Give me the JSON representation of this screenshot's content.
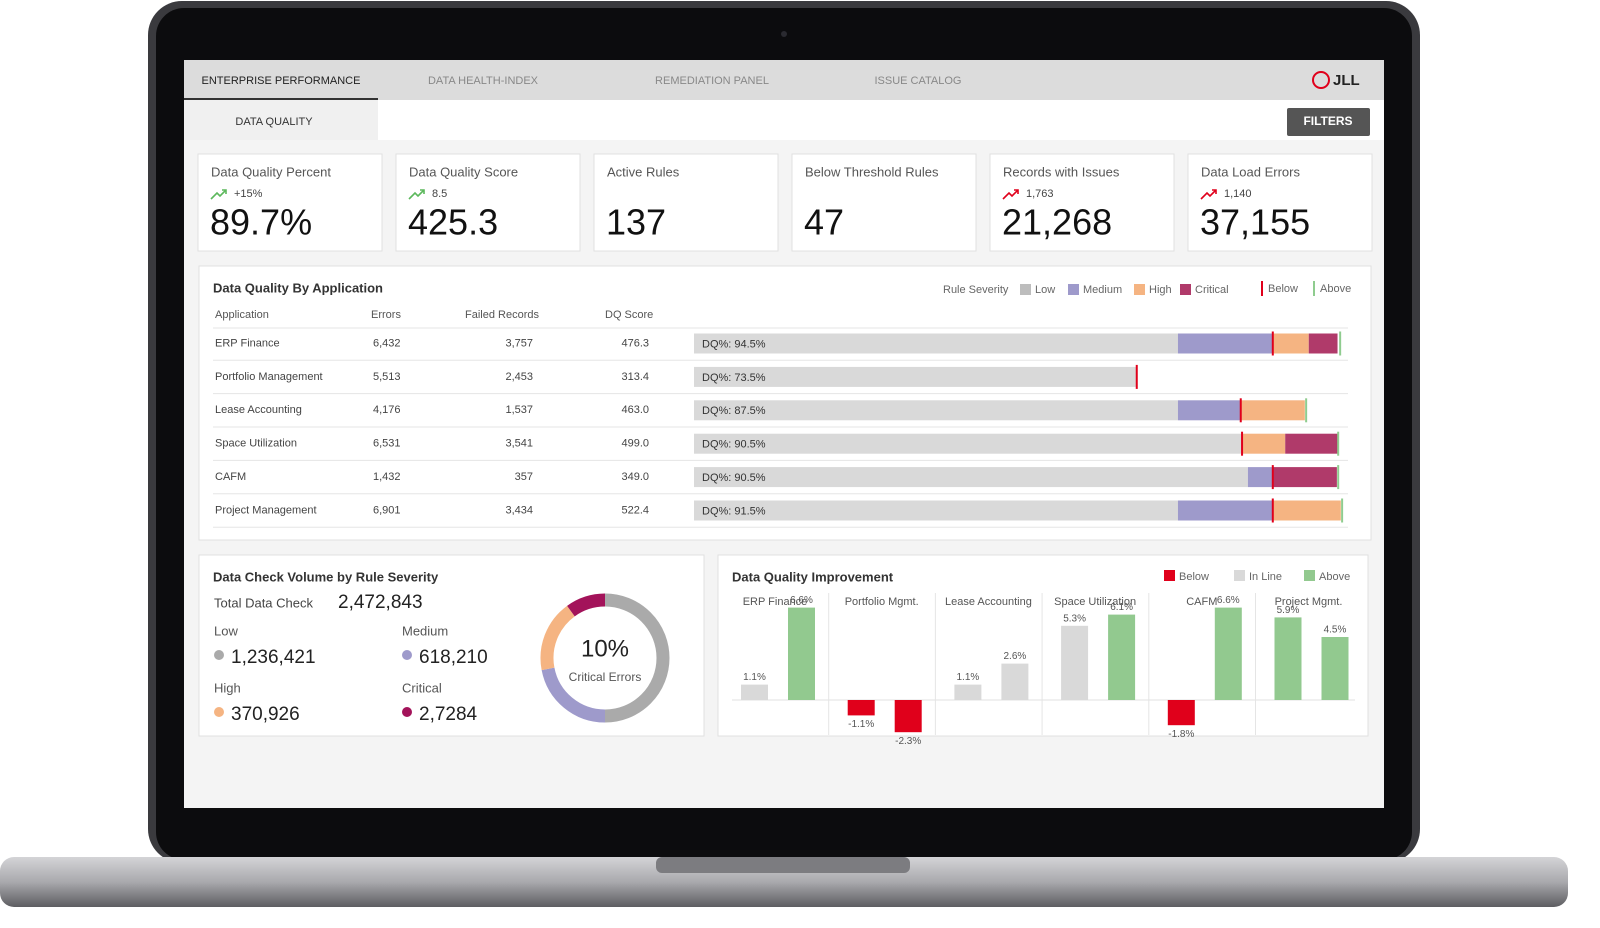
{
  "nav": {
    "tabs": [
      "ENTERPRISE PERFORMANCE",
      "DATA HEALTH-INDEX",
      "REMEDIATION PANEL",
      "ISSUE CATALOG"
    ],
    "active": 0,
    "logo": "JLL",
    "subtab": "DATA QUALITY",
    "filters": "FILTERS"
  },
  "kpis": [
    {
      "title": "Data Quality Percent",
      "trend": "+15%",
      "trend_color": "#5cb85c",
      "value": "89.7%"
    },
    {
      "title": "Data Quality Score",
      "trend": "8.5",
      "trend_color": "#5cb85c",
      "value": "425.3"
    },
    {
      "title": "Active Rules",
      "value": "137"
    },
    {
      "title": "Below Threshold Rules",
      "value": "47"
    },
    {
      "title": "Records with Issues",
      "trend": "1,763",
      "trend_color": "#e0001b",
      "value": "21,268"
    },
    {
      "title": "Data Load Errors",
      "trend": "1,140",
      "trend_color": "#e0001b",
      "value": "37,155"
    }
  ],
  "app_table": {
    "title": "Data Quality By Application",
    "legend_label": "Rule Severity",
    "severity": [
      {
        "name": "Low",
        "color": "#bdbdbd"
      },
      {
        "name": "Medium",
        "color": "#9e9acb"
      },
      {
        "name": "High",
        "color": "#f5b482"
      },
      {
        "name": "Critical",
        "color": "#b03a6a"
      }
    ],
    "base_color": "#d9d9d9",
    "markers": [
      {
        "name": "Below",
        "color": "#e0001b"
      },
      {
        "name": "Above",
        "color": "#8fcc8f"
      }
    ],
    "columns": [
      "Application",
      "Errors",
      "Failed Records",
      "DQ Score"
    ],
    "xlim": [
      0,
      100
    ],
    "rows": [
      {
        "application": "ERP Finance",
        "errors": "6,432",
        "failed_records": "3,757",
        "dq_score": "476.3",
        "dq_label": "DQ%: 94.5%",
        "segments": [
          74.0,
          14.5,
          5.5,
          4.4
        ],
        "markers": [
          88.5,
          98.8
        ]
      },
      {
        "application": "Portfolio Management",
        "errors": "5,513",
        "failed_records": "2,453",
        "dq_score": "313.4",
        "dq_label": "DQ%: 73.5%",
        "segments": [
          67.6,
          null,
          null,
          null
        ],
        "markers": [
          67.7,
          null
        ]
      },
      {
        "application": "Lease Accounting",
        "errors": "4,176",
        "failed_records": "1,537",
        "dq_score": "463.0",
        "dq_label": "DQ%: 87.5%",
        "segments": [
          74.0,
          9.6,
          9.8,
          null
        ],
        "markers": [
          83.6,
          93.6
        ]
      },
      {
        "application": "Space Utilization",
        "errors": "6,531",
        "failed_records": "3,541",
        "dq_score": "499.0",
        "dq_label": "DQ%: 90.5%",
        "segments": [
          83.8,
          null,
          6.6,
          8.0
        ],
        "markers": [
          83.8,
          98.5
        ]
      },
      {
        "application": "CAFM",
        "errors": "1,432",
        "failed_records": "357",
        "dq_score": "349.0",
        "dq_label": "DQ%: 90.5%",
        "segments": [
          84.7,
          3.8,
          null,
          9.8
        ],
        "markers": [
          88.5,
          98.5
        ]
      },
      {
        "application": "Project Management",
        "errors": "6,901",
        "failed_records": "3,434",
        "dq_score": "522.4",
        "dq_label": "DQ%: 91.5%",
        "segments": [
          74.0,
          14.5,
          10.4,
          null
        ],
        "markers": [
          88.5,
          99.1
        ]
      }
    ]
  },
  "volume": {
    "title": "Data Check Volume by Rule Severity",
    "total_label": "Total Data Check",
    "total": "2,472,843",
    "items": [
      {
        "name": "Low",
        "value": "1,236,421",
        "color": "#aaaaaa"
      },
      {
        "name": "Medium",
        "value": "618,210",
        "color": "#9e9acb"
      },
      {
        "name": "High",
        "value": "370,926",
        "color": "#f5b482"
      },
      {
        "name": "Critical",
        "value": "2,7284",
        "color": "#a3135a"
      }
    ],
    "donut": {
      "center": "10%",
      "label": "Critical Errors",
      "shares": [
        50,
        22,
        18,
        10
      ]
    }
  },
  "improvement": {
    "title": "Data Quality Improvement",
    "legend": [
      {
        "name": "Below",
        "color": "#e0001b"
      },
      {
        "name": "In Line",
        "color": "#d9d9d9"
      },
      {
        "name": "Above",
        "color": "#92c98f"
      }
    ],
    "groups": [
      {
        "name": "ERP Finance",
        "bars": [
          {
            "value": 1.1,
            "label": "1.1%",
            "status": 1
          },
          {
            "value": 6.6,
            "label": "6.6%",
            "status": 2
          }
        ]
      },
      {
        "name": "Portfolio Mgmt.",
        "bars": [
          {
            "value": -1.1,
            "label": "-1.1%",
            "status": 0
          },
          {
            "value": -2.3,
            "label": "-2.3%",
            "status": 0
          }
        ]
      },
      {
        "name": "Lease Accounting",
        "bars": [
          {
            "value": 1.1,
            "label": "1.1%",
            "status": 1
          },
          {
            "value": 2.6,
            "label": "2.6%",
            "status": 1
          }
        ]
      },
      {
        "name": "Space Utilization",
        "bars": [
          {
            "value": 5.3,
            "label": "5.3%",
            "status": 1
          },
          {
            "value": 6.1,
            "label": "6.1%",
            "status": 2
          }
        ]
      },
      {
        "name": "CAFM",
        "bars": [
          {
            "value": -1.8,
            "label": "-1.8%",
            "status": 0
          },
          {
            "value": 6.6,
            "label": "6.6%",
            "status": 2
          }
        ]
      },
      {
        "name": "Project Mgmt.",
        "bars": [
          {
            "value": 5.9,
            "label": "5.9%",
            "status": 2
          },
          {
            "value": 4.5,
            "label": "4.5%",
            "status": 2
          }
        ]
      }
    ]
  }
}
